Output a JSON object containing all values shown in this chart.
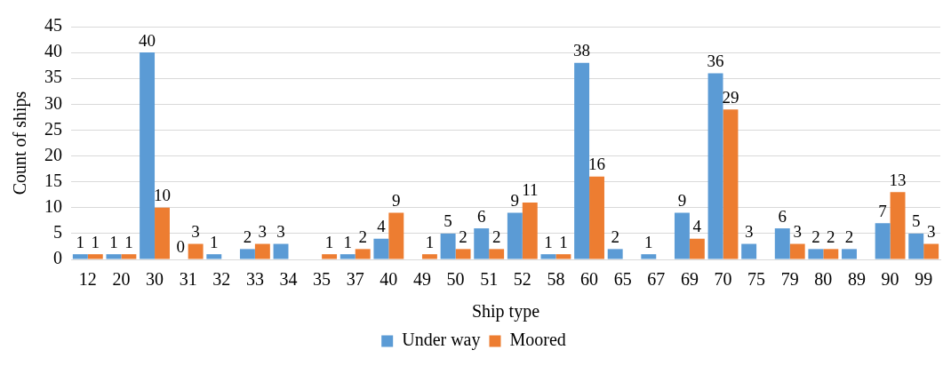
{
  "chart_data": {
    "type": "bar",
    "xlabel": "Ship type",
    "ylabel": "Count of ships",
    "categories": [
      "12",
      "20",
      "30",
      "31",
      "32",
      "33",
      "34",
      "35",
      "37",
      "40",
      "49",
      "50",
      "51",
      "52",
      "58",
      "60",
      "65",
      "67",
      "69",
      "70",
      "75",
      "79",
      "80",
      "89",
      "90",
      "99"
    ],
    "series": [
      {
        "name": "Under way",
        "color": "#5b9bd5",
        "values": [
          1,
          1,
          40,
          0,
          1,
          2,
          3,
          null,
          1,
          4,
          null,
          5,
          6,
          9,
          1,
          38,
          2,
          1,
          9,
          36,
          3,
          6,
          2,
          2,
          7,
          5
        ]
      },
      {
        "name": "Moored",
        "color": "#ed7d31",
        "values": [
          1,
          1,
          10,
          3,
          null,
          3,
          null,
          1,
          2,
          9,
          1,
          2,
          2,
          11,
          1,
          16,
          null,
          null,
          4,
          29,
          null,
          3,
          2,
          null,
          13,
          3
        ]
      }
    ],
    "ylim": [
      0,
      45
    ],
    "yticks": [
      0,
      5,
      10,
      15,
      20,
      25,
      30,
      35,
      40,
      45
    ],
    "grid": "y",
    "legend": "bottom",
    "data_labels": true
  }
}
